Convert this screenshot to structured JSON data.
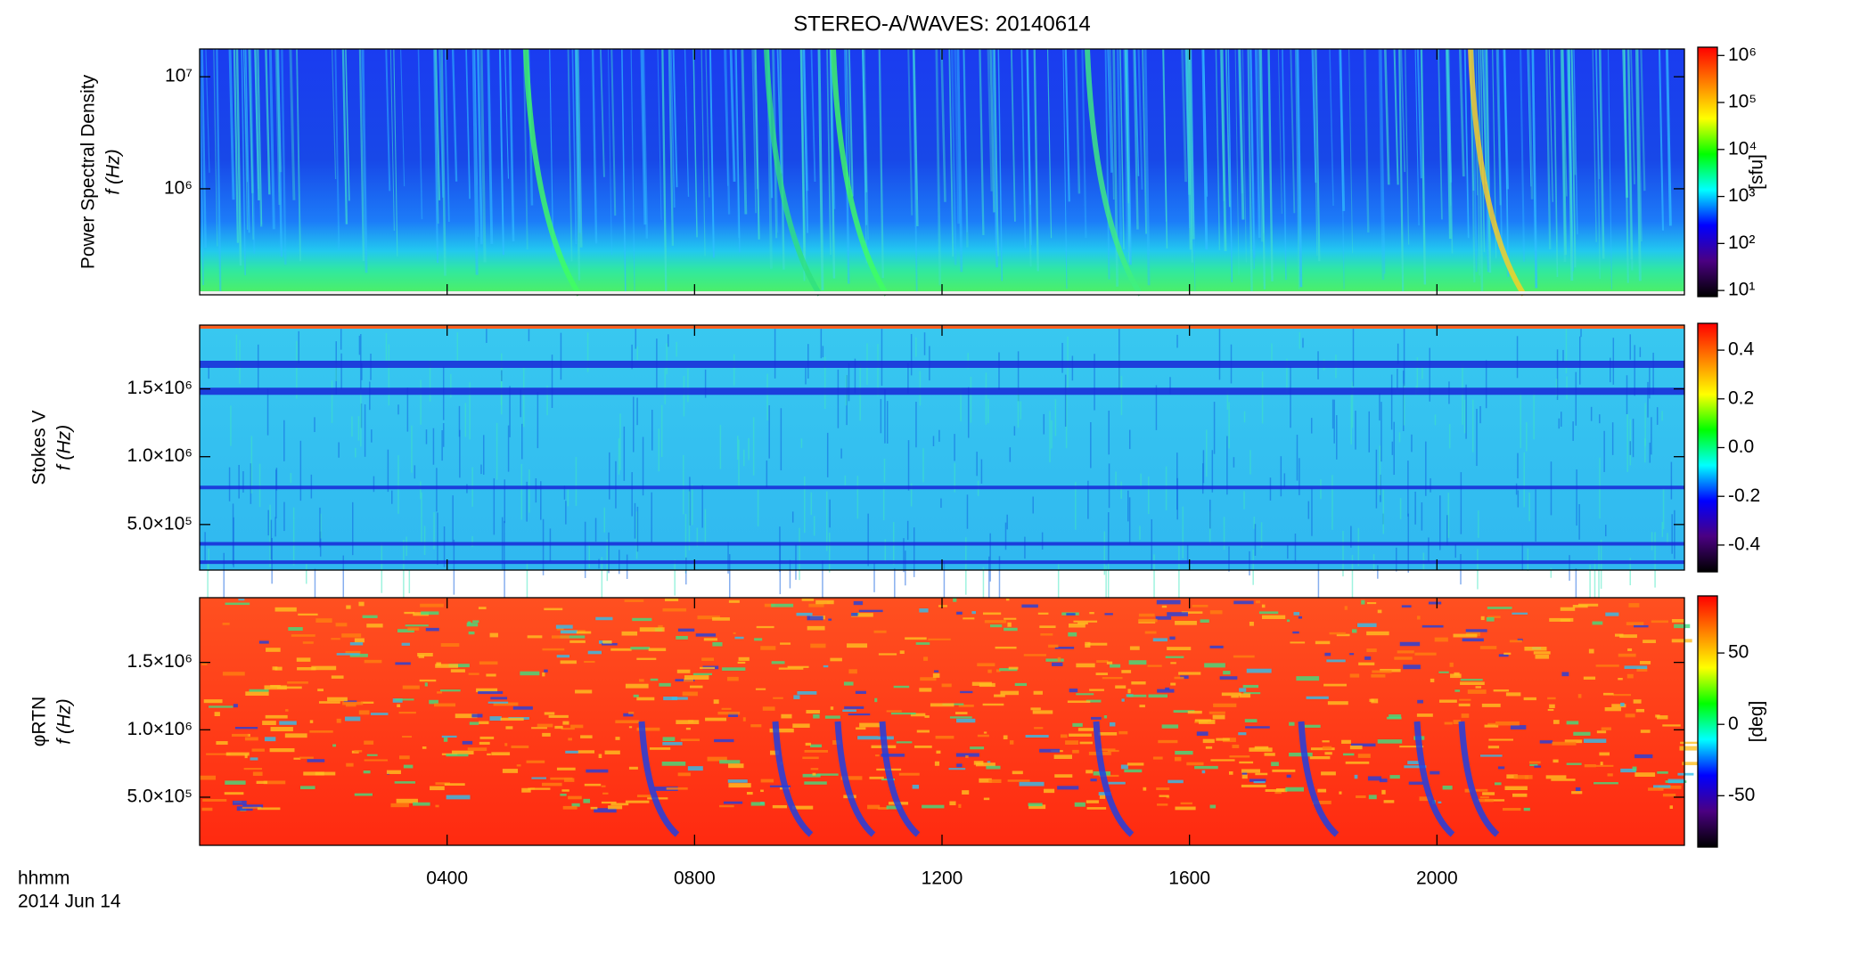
{
  "chart_data": [
    {
      "type": "heatmap",
      "title": "STEREO-A/WAVES: 20140614",
      "ylabel": [
        "Power Spectral Density",
        "f (Hz)"
      ],
      "ylog": true,
      "ylim": [
        113000,
        17700000
      ],
      "yticks": [
        {
          "value": 1000000,
          "label": "10⁶"
        },
        {
          "value": 10000000,
          "label": "10⁷"
        }
      ],
      "colorbar": {
        "label": "[sfu]",
        "log": true,
        "lim": [
          7.4,
          1500000
        ],
        "ticks": [
          {
            "value": 10,
            "label": "10¹"
          },
          {
            "value": 100,
            "label": "10²"
          },
          {
            "value": 1000,
            "label": "10³"
          },
          {
            "value": 10000,
            "label": "10⁴"
          },
          {
            "value": 100000,
            "label": "10⁵"
          },
          {
            "value": 1000000,
            "label": "10⁶"
          }
        ],
        "colors": [
          "#000000",
          "#4b0082",
          "#0000ff",
          "#00ffff",
          "#00ff00",
          "#ffff00",
          "#ff8000",
          "#ff0000"
        ]
      }
    },
    {
      "type": "heatmap",
      "ylabel": [
        "Stokes V",
        "f (Hz)"
      ],
      "ylog": false,
      "ylim": [
        164000,
        1970000
      ],
      "yticks": [
        {
          "value": 500000,
          "label": "5.0×10⁵"
        },
        {
          "value": 1000000,
          "label": "1.0×10⁶"
        },
        {
          "value": 1500000,
          "label": "1.5×10⁶"
        }
      ],
      "colorbar": {
        "label": "",
        "log": false,
        "lim": [
          -0.51,
          0.51
        ],
        "ticks": [
          -0.4,
          -0.2,
          {
            "value": 0,
            "label": "0.0"
          },
          0.2,
          0.4
        ],
        "colors": [
          "#000000",
          "#4b0082",
          "#0000ff",
          "#00ffff",
          "#00ff00",
          "#ffff00",
          "#ff8000",
          "#ff0000"
        ]
      }
    },
    {
      "type": "heatmap",
      "ylabel": [
        "φRTN",
        "f (Hz)"
      ],
      "ylog": false,
      "ylim": [
        143000,
        1980000
      ],
      "yticks": [
        {
          "value": 500000,
          "label": "5.0×10⁵"
        },
        {
          "value": 1000000,
          "label": "1.0×10⁶"
        },
        {
          "value": 1500000,
          "label": "1.5×10⁶"
        }
      ],
      "xlim": [
        0,
        24
      ],
      "xticks": [
        {
          "value": 4,
          "label": "0400"
        },
        {
          "value": 8,
          "label": "0800"
        },
        {
          "value": 12,
          "label": "1200"
        },
        {
          "value": 16,
          "label": "1600"
        },
        {
          "value": 20,
          "label": "2000"
        }
      ],
      "xlabel": "hhmm",
      "date": "2014 Jun 14",
      "colorbar": {
        "label": "[deg]",
        "log": false,
        "lim": [
          -86,
          90
        ],
        "ticks": [
          -50,
          0,
          50
        ],
        "colors": [
          "#000000",
          "#4b0082",
          "#0000ff",
          "#00ffff",
          "#00ff00",
          "#ffff00",
          "#ff8000",
          "#ff0000"
        ]
      }
    }
  ]
}
